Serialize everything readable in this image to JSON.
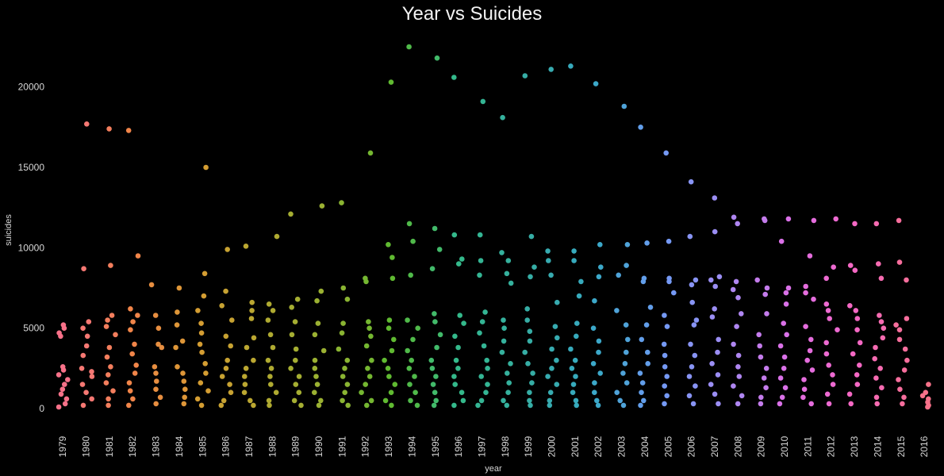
{
  "chart_data": {
    "type": "scatter",
    "title": "Year vs Suicides",
    "xlabel": "year",
    "ylabel": "suicides",
    "categories": [
      "1979",
      "1980",
      "1981",
      "1982",
      "1983",
      "1984",
      "1985",
      "1986",
      "1987",
      "1988",
      "1989",
      "1990",
      "1991",
      "1992",
      "1993",
      "1994",
      "1995",
      "1996",
      "1997",
      "1998",
      "1999",
      "2000",
      "2001",
      "2002",
      "2003",
      "2004",
      "2005",
      "2006",
      "2007",
      "2008",
      "2009",
      "2010",
      "2011",
      "2012",
      "2013",
      "2014",
      "2015",
      "2016"
    ],
    "ylim": [
      0,
      22500
    ],
    "yticks": [
      0,
      5000,
      10000,
      15000,
      20000
    ],
    "grid": false,
    "palette": [
      "#f77189",
      "#f2844a",
      "#d89c32",
      "#b4a931",
      "#97b232",
      "#5bbb31",
      "#33b98d",
      "#36ada4",
      "#38a9c5",
      "#6e9bf4",
      "#a48cf4",
      "#e06ee6",
      "#f668c2",
      "#f77189"
    ],
    "series": [
      {
        "year": "1979",
        "values": [
          5200,
          5000,
          4700,
          4500,
          2600,
          2400,
          2100,
          1800,
          1500,
          1200,
          900,
          600,
          300,
          100
        ]
      },
      {
        "year": "1980",
        "values": [
          17700,
          8700,
          5400,
          5000,
          4500,
          3900,
          3300,
          2500,
          2300,
          2000,
          1500,
          1000,
          600,
          200
        ]
      },
      {
        "year": "1981",
        "values": [
          17400,
          8900,
          5800,
          5500,
          5100,
          4600,
          3800,
          3200,
          2600,
          2100,
          1600,
          1100,
          600,
          200
        ]
      },
      {
        "year": "1982",
        "values": [
          17300,
          9500,
          6200,
          5800,
          5400,
          4900,
          4000,
          3400,
          2700,
          2200,
          1600,
          1100,
          600,
          200
        ]
      },
      {
        "year": "1983",
        "values": [
          7700,
          5800,
          5000,
          4000,
          3800,
          2600,
          2200,
          1700,
          1200,
          700,
          300
        ]
      },
      {
        "year": "1984",
        "values": [
          7500,
          6000,
          5200,
          4200,
          3800,
          2600,
          2200,
          1700,
          1200,
          700,
          300
        ]
      },
      {
        "year": "1985",
        "values": [
          15000,
          8400,
          7000,
          6100,
          5300,
          4700,
          4000,
          3500,
          2800,
          2200,
          1600,
          1100,
          600,
          200
        ]
      },
      {
        "year": "1986",
        "values": [
          9900,
          7300,
          6400,
          5500,
          4500,
          3900,
          3000,
          2500,
          2000,
          1500,
          1000,
          500,
          200
        ]
      },
      {
        "year": "1987",
        "values": [
          10100,
          6600,
          6100,
          5600,
          4400,
          3800,
          3000,
          2500,
          2000,
          1500,
          1000,
          500,
          200
        ]
      },
      {
        "year": "1988",
        "values": [
          10700,
          6500,
          6100,
          5500,
          4600,
          3800,
          3000,
          2500,
          2000,
          1500,
          1000,
          500,
          200
        ]
      },
      {
        "year": "1989",
        "values": [
          12100,
          6800,
          6300,
          5400,
          4600,
          3700,
          3000,
          2500,
          2000,
          1500,
          1000,
          500,
          200
        ]
      },
      {
        "year": "1990",
        "values": [
          12600,
          7300,
          6700,
          5300,
          4600,
          3600,
          3000,
          2500,
          2000,
          1500,
          1000,
          500,
          200
        ]
      },
      {
        "year": "1991",
        "values": [
          12800,
          7500,
          6800,
          5300,
          4700,
          3700,
          3000,
          2500,
          2000,
          1500,
          1000,
          500,
          200
        ]
      },
      {
        "year": "1992",
        "values": [
          15900,
          8100,
          7900,
          5400,
          5000,
          4500,
          3900,
          3000,
          2500,
          2000,
          1500,
          1000,
          500,
          200
        ]
      },
      {
        "year": "1993",
        "values": [
          20300,
          10200,
          9400,
          8100,
          5500,
          5000,
          4300,
          3600,
          3000,
          2500,
          2000,
          1500,
          1000,
          500,
          200
        ]
      },
      {
        "year": "1994",
        "values": [
          22500,
          11500,
          10400,
          8300,
          5500,
          5000,
          4300,
          3600,
          3000,
          2500,
          2000,
          1500,
          1000,
          500,
          200
        ]
      },
      {
        "year": "1995",
        "values": [
          21800,
          11200,
          9900,
          8700,
          5900,
          5400,
          4600,
          3800,
          3000,
          2500,
          2000,
          1500,
          1000,
          500,
          200
        ]
      },
      {
        "year": "1996",
        "values": [
          20600,
          10800,
          9300,
          9000,
          5800,
          5300,
          4500,
          3800,
          3000,
          2500,
          2000,
          1500,
          1000,
          500,
          200
        ]
      },
      {
        "year": "1997",
        "values": [
          19100,
          10800,
          9200,
          8300,
          6000,
          5400,
          4700,
          3900,
          3000,
          2500,
          2000,
          1500,
          1000,
          500,
          200
        ]
      },
      {
        "year": "1998",
        "values": [
          18100,
          9700,
          9200,
          8400,
          7800,
          5500,
          5000,
          4200,
          3500,
          2800,
          2200,
          1600,
          1000,
          500,
          200
        ]
      },
      {
        "year": "1999",
        "values": [
          20700,
          10700,
          8800,
          8200,
          6200,
          5500,
          4800,
          4200,
          3500,
          2800,
          2200,
          1600,
          1000,
          500,
          200
        ]
      },
      {
        "year": "2000",
        "values": [
          21100,
          9800,
          9200,
          8300,
          6600,
          5100,
          4400,
          3700,
          3000,
          2500,
          2000,
          1500,
          1000,
          500,
          200
        ]
      },
      {
        "year": "2001",
        "values": [
          21300,
          9800,
          9200,
          7900,
          7000,
          5300,
          4500,
          3700,
          3000,
          2500,
          2000,
          1500,
          1000,
          500,
          200
        ]
      },
      {
        "year": "2002",
        "values": [
          20200,
          10200,
          8800,
          8200,
          6700,
          5000,
          4200,
          3500,
          2800,
          2200,
          1600,
          1000,
          500,
          200
        ]
      },
      {
        "year": "2003",
        "values": [
          18800,
          10200,
          8900,
          8300,
          6100,
          5200,
          4300,
          3500,
          2800,
          2200,
          1600,
          1000,
          500,
          200
        ]
      },
      {
        "year": "2004",
        "values": [
          17500,
          10300,
          8100,
          7900,
          6300,
          5200,
          4300,
          3500,
          2800,
          2200,
          1600,
          1000,
          500,
          200
        ]
      },
      {
        "year": "2005",
        "values": [
          15900,
          10400,
          8100,
          7900,
          7200,
          5800,
          5100,
          4000,
          3300,
          2600,
          2000,
          1400,
          800,
          300
        ]
      },
      {
        "year": "2006",
        "values": [
          14100,
          10700,
          8000,
          7700,
          6600,
          5500,
          5200,
          4000,
          3300,
          2600,
          2000,
          1400,
          800,
          300
        ]
      },
      {
        "year": "2007",
        "values": [
          13100,
          11000,
          8200,
          8000,
          7600,
          6200,
          5700,
          4300,
          3500,
          2800,
          2100,
          1500,
          900,
          300
        ]
      },
      {
        "year": "2008",
        "values": [
          11900,
          11500,
          7900,
          7400,
          6900,
          5900,
          5100,
          4000,
          3300,
          2600,
          2000,
          1400,
          800,
          300
        ]
      },
      {
        "year": "2009",
        "values": [
          11800,
          11700,
          8000,
          7500,
          7100,
          5900,
          4600,
          3900,
          3200,
          2500,
          1900,
          1300,
          700,
          300
        ]
      },
      {
        "year": "2010",
        "values": [
          11800,
          10400,
          7500,
          7200,
          6500,
          5300,
          4600,
          3900,
          3200,
          2500,
          1900,
          1300,
          700,
          300
        ]
      },
      {
        "year": "2011",
        "values": [
          11700,
          9500,
          7600,
          7200,
          6800,
          5100,
          4300,
          3600,
          3000,
          2400,
          1800,
          1200,
          700,
          300
        ]
      },
      {
        "year": "2012",
        "values": [
          11800,
          8800,
          8100,
          6500,
          6100,
          5600,
          4900,
          4100,
          3400,
          2700,
          2100,
          1500,
          900,
          300
        ]
      },
      {
        "year": "2013",
        "values": [
          11500,
          8900,
          8600,
          6400,
          6100,
          5600,
          4900,
          4100,
          3400,
          2700,
          2100,
          1500,
          900,
          300
        ]
      },
      {
        "year": "2014",
        "values": [
          11500,
          9000,
          8100,
          5800,
          5400,
          5000,
          4400,
          3800,
          3100,
          2500,
          1900,
          1300,
          700,
          300
        ]
      },
      {
        "year": "2015",
        "values": [
          11700,
          9100,
          8000,
          5600,
          5200,
          4900,
          4300,
          3700,
          3000,
          2400,
          1800,
          1200,
          700,
          300
        ]
      },
      {
        "year": "2016",
        "values": [
          1500,
          1000,
          800,
          600,
          400,
          200,
          100
        ]
      }
    ]
  }
}
